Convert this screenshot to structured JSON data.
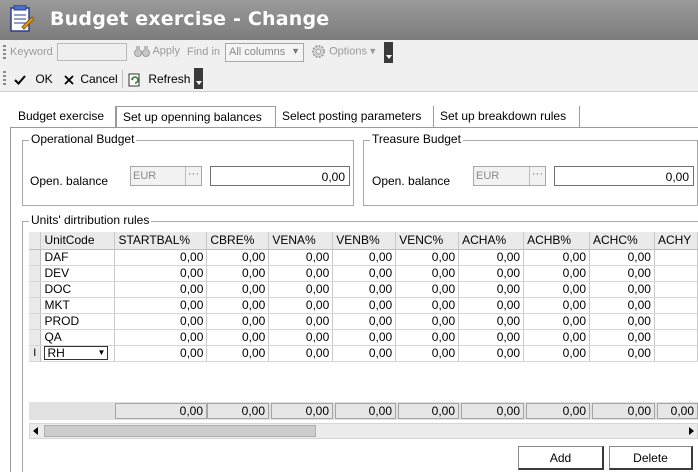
{
  "window": {
    "title": "Budget exercise - Change"
  },
  "toolbar": {
    "keyword_label": "Keyword",
    "keyword_value": "",
    "apply_label": "Apply",
    "find_in_label": "Find in",
    "find_in_value": "All columns",
    "options_label": "Options",
    "ok_label": "OK",
    "cancel_label": "Cancel",
    "refresh_label": "Refresh"
  },
  "tabs": [
    {
      "label": "Budget exercise"
    },
    {
      "label": "Set up openning balances"
    },
    {
      "label": "Select posting parameters"
    },
    {
      "label": "Set up breakdown rules"
    }
  ],
  "operational": {
    "title": "Operational Budget",
    "label": "Open. balance",
    "currency": "EUR",
    "amount": "0,00"
  },
  "treasury": {
    "title": "Treasure Budget",
    "label": "Open. balance",
    "currency": "EUR",
    "amount": "0,00"
  },
  "grid": {
    "title": "Units' dirtribution rules",
    "columns": [
      "UnitCode",
      "STARTBAL%",
      "CBRE%",
      "VENA%",
      "VENB%",
      "VENC%",
      "ACHA%",
      "ACHB%",
      "ACHC%",
      "ACHY"
    ],
    "rows": [
      {
        "code": "DAF",
        "values": [
          "0,00",
          "0,00",
          "0,00",
          "0,00",
          "0,00",
          "0,00",
          "0,00",
          "0,00",
          ""
        ]
      },
      {
        "code": "DEV",
        "values": [
          "0,00",
          "0,00",
          "0,00",
          "0,00",
          "0,00",
          "0,00",
          "0,00",
          "0,00",
          ""
        ]
      },
      {
        "code": "DOC",
        "values": [
          "0,00",
          "0,00",
          "0,00",
          "0,00",
          "0,00",
          "0,00",
          "0,00",
          "0,00",
          ""
        ]
      },
      {
        "code": "MKT",
        "values": [
          "0,00",
          "0,00",
          "0,00",
          "0,00",
          "0,00",
          "0,00",
          "0,00",
          "0,00",
          ""
        ]
      },
      {
        "code": "PROD",
        "values": [
          "0,00",
          "0,00",
          "0,00",
          "0,00",
          "0,00",
          "0,00",
          "0,00",
          "0,00",
          ""
        ]
      },
      {
        "code": "QA",
        "values": [
          "0,00",
          "0,00",
          "0,00",
          "0,00",
          "0,00",
          "0,00",
          "0,00",
          "0,00",
          ""
        ]
      },
      {
        "code": "RH",
        "values": [
          "0,00",
          "0,00",
          "0,00",
          "0,00",
          "0,00",
          "0,00",
          "0,00",
          "0,00",
          ""
        ]
      }
    ],
    "totals": [
      "0,00",
      "0,00",
      "0,00",
      "0,00",
      "0,00",
      "0,00",
      "0,00",
      "0,00",
      "0,00"
    ]
  },
  "buttons": {
    "add": "Add",
    "delete": "Delete"
  },
  "icons": [
    "form-icon",
    "apply-binoculars-icon",
    "options-gear-icon",
    "ok-check-icon",
    "cancel-x-icon",
    "refresh-icon",
    "ellipsis-icon",
    "row-cursor-icon"
  ]
}
